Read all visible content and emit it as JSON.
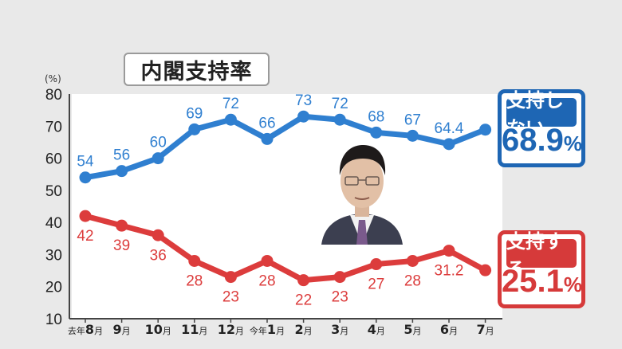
{
  "chart_data": {
    "type": "line",
    "title": "内閣支持率",
    "yunit": "(%)",
    "ylim": [
      10,
      80
    ],
    "yticks": [
      10,
      20,
      30,
      40,
      50,
      60,
      70,
      80
    ],
    "categories": [
      "去年8月",
      "9月",
      "10月",
      "11月",
      "12月",
      "今年1月",
      "2月",
      "3月",
      "4月",
      "5月",
      "6月",
      "7月"
    ],
    "series": [
      {
        "name": "支持しない",
        "color": "#2f7fd0",
        "values": [
          54,
          56,
          60,
          69,
          72,
          66,
          73,
          72,
          68,
          67,
          64.4,
          68.9
        ],
        "labels": [
          "54",
          "56",
          "60",
          "69",
          "72",
          "66",
          "73",
          "72",
          "68",
          "67",
          "64.4",
          ""
        ]
      },
      {
        "name": "支持する",
        "color": "#dc3c3c",
        "values": [
          42,
          39,
          36,
          28,
          23,
          28,
          22,
          23,
          27,
          28,
          31.2,
          25.1
        ],
        "labels": [
          "42",
          "39",
          "36",
          "28",
          "23",
          "28",
          "22",
          "23",
          "27",
          "28",
          "31.2",
          ""
        ]
      }
    ],
    "legend": {
      "oppose": {
        "label": "支持しない",
        "value": "68.9",
        "unit": "%"
      },
      "support": {
        "label": "支持する",
        "value": "25.1",
        "unit": "%"
      }
    }
  }
}
